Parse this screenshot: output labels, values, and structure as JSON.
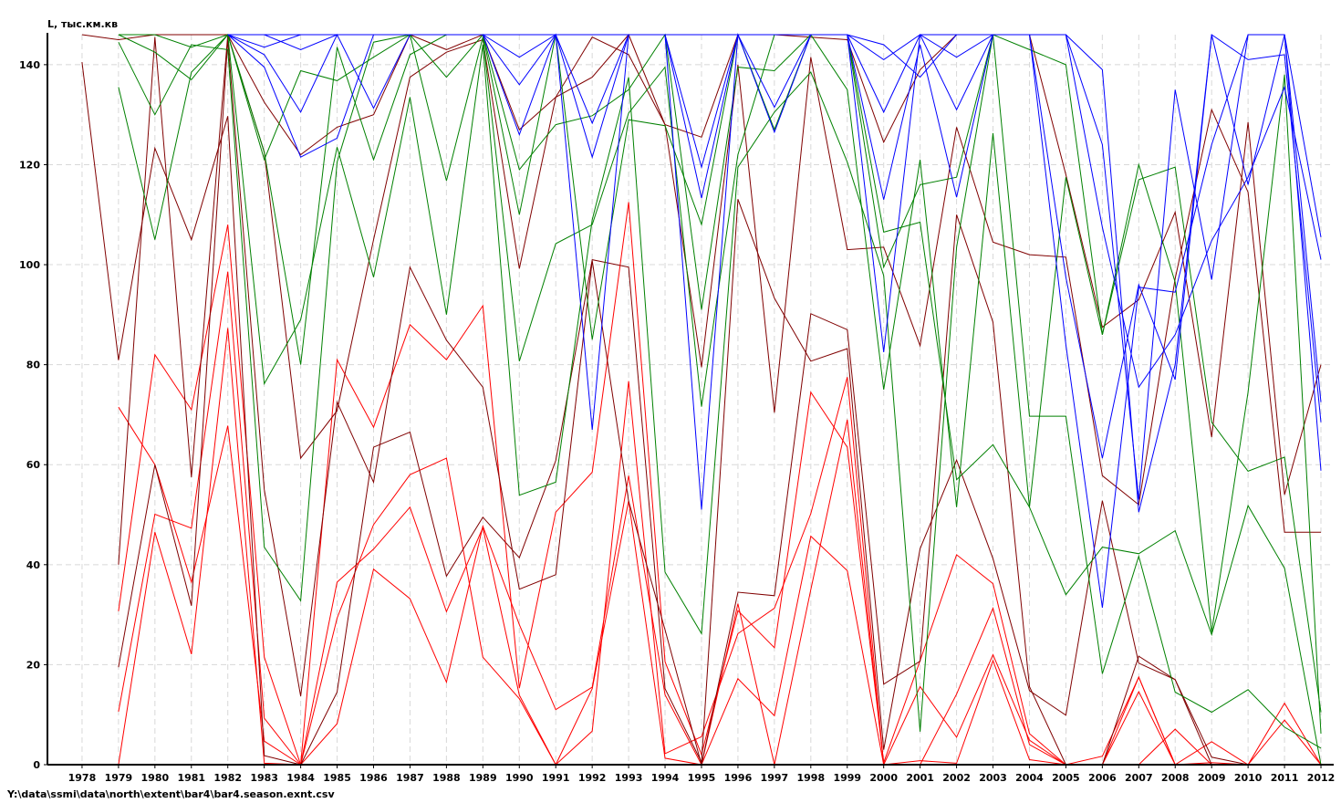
{
  "chart_data": {
    "type": "line",
    "title": "",
    "ylabel": "L, тыс.км.кв",
    "xlabel": "",
    "x": [
      1978,
      1979,
      1980,
      1981,
      1982,
      1983,
      1984,
      1985,
      1986,
      1987,
      1988,
      1989,
      1990,
      1991,
      1992,
      1993,
      1994,
      1995,
      1996,
      1997,
      1998,
      1999,
      2000,
      2001,
      2002,
      2003,
      2004,
      2005,
      2006,
      2007,
      2008,
      2009,
      2010,
      2011,
      2012
    ],
    "x_tick_labels": [
      "1978",
      "1979",
      "1980",
      "1981",
      "1982",
      "1983",
      "1984",
      "1985",
      "1986",
      "1987",
      "1988",
      "1989",
      "1990",
      "1991",
      "1992",
      "1993",
      "1994",
      "1995",
      "1996",
      "1997",
      "1998",
      "1999",
      "2000",
      "2001",
      "2002",
      "2003",
      "2004",
      "2005",
      "2006",
      "2007",
      "2008",
      "2009",
      "2010",
      "2011",
      "2012"
    ],
    "y_tick_labels": [
      "0",
      "20",
      "40",
      "60",
      "80",
      "100",
      "120",
      "140"
    ],
    "xlim": [
      1977.05,
      2012.35
    ],
    "ylim": [
      0,
      146
    ],
    "grid": true,
    "legend": "none",
    "colors": {
      "red": "#ff0000",
      "darkred": "#800000",
      "green": "#008000",
      "blue": "#0000ff"
    },
    "series": [
      {
        "color": "red",
        "values": [
          null,
          10.6,
          50.1,
          47.3,
          98.6,
          9.3,
          0,
          36.5,
          43.1,
          51.5,
          30.6,
          47.4,
          13.9,
          0,
          15.2,
          52.8,
          1.3,
          0,
          17.2,
          9.8,
          45.7,
          38.8,
          0,
          15.6,
          5.5,
          22.0,
          4.9,
          0,
          0,
          17.5,
          0,
          0,
          0,
          0,
          0
        ]
      },
      {
        "color": "red",
        "values": [
          null,
          30.7,
          82.0,
          71.0,
          108.0,
          21.5,
          0,
          81.0,
          67.5,
          88.0,
          81.0,
          91.8,
          15.3,
          50.5,
          58.5,
          112.5,
          20.6,
          2.0,
          30.8,
          23.4,
          74.5,
          63.5,
          0.4,
          20.8,
          42.0,
          36.2,
          6.2,
          0,
          1.7,
          17.5,
          0,
          4.6,
          0,
          12.3,
          0
        ]
      },
      {
        "color": "red",
        "values": [
          null,
          0,
          46.5,
          22.1,
          87.3,
          0.3,
          0,
          8.2,
          39.1,
          33.2,
          16.5,
          47.7,
          28.0,
          11.0,
          15.5,
          57.8,
          14.0,
          0,
          32.2,
          0,
          35.0,
          69.0,
          0,
          0.8,
          0.3,
          20.8,
          1.0,
          0,
          0,
          14.6,
          0,
          0.4,
          0,
          0,
          0
        ]
      },
      {
        "color": "red",
        "values": [
          null,
          71.5,
          60.0,
          36.5,
          67.8,
          4.7,
          0,
          29.3,
          48.0,
          58.0,
          61.3,
          21.5,
          13.2,
          0,
          6.7,
          76.7,
          2.2,
          5.6,
          26.2,
          31.3,
          50.2,
          77.5,
          0,
          0,
          14.1,
          31.3,
          4.0,
          0,
          0,
          0,
          7.1,
          0,
          0,
          8.9,
          0
        ]
      },
      {
        "color": "red",
        "values": [
          null,
          0,
          0,
          0,
          0,
          0,
          0,
          0,
          0,
          0,
          0,
          0,
          0,
          0,
          0,
          0,
          0,
          0,
          0,
          0,
          0,
          0,
          0,
          0,
          0,
          0,
          0,
          0,
          0,
          0,
          0,
          0,
          0,
          0,
          0
        ]
      },
      {
        "color": "darkred",
        "values": [
          140.5,
          80.9,
          123.3,
          105.0,
          129.7,
          1.8,
          0,
          14.5,
          63.5,
          66.5,
          37.7,
          49.5,
          41.4,
          60.8,
          101.0,
          99.5,
          15.2,
          0.5,
          113.1,
          93.3,
          80.7,
          83.2,
          3.0,
          43.2,
          60.9,
          41.2,
          14.8,
          9.9,
          52.8,
          20.3,
          17.0,
          0,
          0,
          0,
          0
        ]
      },
      {
        "color": "darkred",
        "values": [
          146,
          145,
          146,
          146,
          146,
          132.5,
          122.0,
          127.5,
          130.0,
          146,
          143.0,
          146,
          127.0,
          133.5,
          137.5,
          146,
          128.0,
          125.5,
          146,
          146,
          145.5,
          145.0,
          124.5,
          139.0,
          146,
          146,
          146,
          118.0,
          87.5,
          93.0,
          110.5,
          65.5,
          128.5,
          54.0,
          80.0
        ]
      },
      {
        "color": "darkred",
        "values": [
          null,
          19.5,
          60.0,
          31.8,
          145.0,
          55.0,
          13.7,
          72.5,
          56.5,
          99.5,
          84.9,
          75.5,
          35.1,
          38.0,
          100.8,
          52.7,
          27.0,
          0,
          34.5,
          33.8,
          90.2,
          87.0,
          16.1,
          20.7,
          110.0,
          88.5,
          15.6,
          0,
          0,
          21.7,
          17.0,
          1.5,
          0,
          0,
          0
        ]
      },
      {
        "color": "darkred",
        "values": [
          null,
          40.0,
          145.5,
          57.5,
          146,
          122.5,
          61.3,
          70.8,
          105.0,
          137.5,
          142.5,
          145.0,
          99.2,
          133.5,
          145.5,
          142.0,
          128.0,
          79.5,
          140.0,
          70.4,
          141.5,
          103.0,
          103.5,
          83.8,
          127.5,
          104.5,
          102.0,
          101.5,
          57.8,
          52.0,
          97.2,
          131.0,
          114.5,
          46.5,
          46.5
        ]
      },
      {
        "color": "green",
        "values": [
          null,
          135.5,
          105.0,
          138.5,
          146,
          76.2,
          89.0,
          123.5,
          97.5,
          133.5,
          90.0,
          144.0,
          53.9,
          56.5,
          109.0,
          137.5,
          38.5,
          26.2,
          119.5,
          130.5,
          138.5,
          120.5,
          97.8,
          6.6,
          103.5,
          146,
          69.7,
          69.7,
          18.2,
          41.7,
          14.5,
          10.5,
          15.0,
          7.5,
          3.3
        ]
      },
      {
        "color": "green",
        "values": [
          null,
          144.5,
          130.0,
          144.0,
          143.0,
          43.5,
          32.8,
          120.5,
          144.5,
          146,
          116.8,
          145.5,
          80.7,
          104.2,
          108.0,
          130.3,
          139.5,
          71.6,
          122.0,
          146,
          146,
          135.0,
          75.0,
          121.0,
          51.5,
          126.3,
          51.5,
          34.0,
          43.5,
          42.2,
          46.8,
          26.0,
          51.8,
          39.3,
          0
        ]
      },
      {
        "color": "green",
        "values": [
          null,
          146,
          142.5,
          137.0,
          146,
          121.0,
          138.8,
          136.8,
          141.5,
          146,
          137.5,
          146,
          119.0,
          128.0,
          129.8,
          135.0,
          146,
          91.0,
          139.5,
          138.8,
          146,
          146,
          106.5,
          108.5,
          57.0,
          64.0,
          51.5,
          117.5,
          86.0,
          120.0,
          96.5,
          26.5,
          74.5,
          138.0,
          6.2
        ]
      },
      {
        "color": "green",
        "values": [
          null,
          146,
          146,
          143.5,
          146,
          122.5,
          80.0,
          143.5,
          121.0,
          142.0,
          146,
          146,
          110.0,
          146,
          85.0,
          129.0,
          127.8,
          108.0,
          146,
          127.0,
          146,
          146,
          99.5,
          116.0,
          117.5,
          146,
          143.0,
          140.0,
          86.0,
          117.0,
          119.5,
          68.5,
          58.7,
          61.5,
          10.5
        ]
      },
      {
        "color": "blue",
        "values": [
          null,
          null,
          null,
          null,
          146,
          142.0,
          130.5,
          146,
          131.3,
          146,
          146,
          146,
          136.0,
          146,
          128.3,
          146,
          146,
          113.3,
          146,
          126.5,
          146,
          146,
          130.5,
          146,
          131.0,
          146,
          146,
          146,
          139.0,
          50.5,
          80.0,
          146,
          141.0,
          142.0,
          68.5
        ]
      },
      {
        "color": "blue",
        "values": [
          null,
          null,
          null,
          null,
          146,
          139.5,
          121.5,
          125.3,
          146,
          146,
          146,
          146,
          126.0,
          146,
          121.5,
          146,
          146,
          119.5,
          146,
          131.5,
          146,
          146,
          113.0,
          144.0,
          113.5,
          146,
          146,
          97.5,
          61.3,
          96.0,
          77.0,
          146,
          116.0,
          146,
          58.8
        ]
      },
      {
        "color": "blue",
        "values": [
          null,
          null,
          null,
          null,
          146,
          146,
          146,
          146,
          146,
          146,
          146,
          146,
          146,
          146,
          146,
          146,
          146,
          51.0,
          146,
          146,
          146,
          146,
          82.5,
          146,
          146,
          146,
          146,
          84.0,
          31.4,
          95.5,
          94.5,
          124.0,
          146,
          146,
          72.5
        ]
      },
      {
        "color": "blue",
        "values": [
          null,
          null,
          null,
          null,
          146,
          143.5,
          146,
          146,
          146,
          146,
          146,
          146,
          146,
          146,
          67.0,
          146,
          146,
          146,
          146,
          146,
          146,
          146,
          144.0,
          137.5,
          146,
          146,
          146,
          146,
          107.5,
          75.5,
          86.0,
          104.8,
          117.5,
          135.5,
          101.0
        ]
      },
      {
        "color": "blue",
        "values": [
          null,
          null,
          null,
          null,
          146,
          146,
          143.0,
          146,
          146,
          146,
          146,
          146,
          141.5,
          146,
          146,
          146,
          146,
          146,
          146,
          146,
          146,
          146,
          141.0,
          146,
          141.5,
          146,
          146,
          146,
          124.0,
          53.0,
          135.0,
          97.0,
          146,
          146,
          105.5
        ]
      }
    ]
  },
  "footer": {
    "path": "Y:\\data\\ssmi\\data\\north\\extent\\bar4\\bar4.season.exnt.csv"
  }
}
